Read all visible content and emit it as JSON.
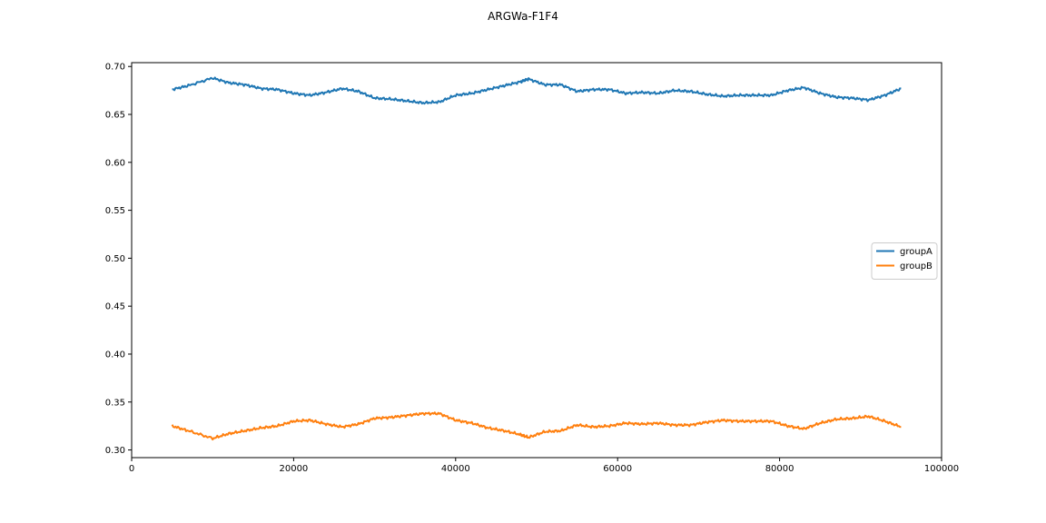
{
  "chart_data": {
    "type": "line",
    "title": "ARGWa-F1F4",
    "xlabel": "",
    "ylabel": "",
    "xlim": [
      0,
      100000
    ],
    "ylim": [
      0.292,
      0.704
    ],
    "xticks": [
      0,
      20000,
      40000,
      60000,
      80000,
      100000
    ],
    "xtick_labels": [
      "0",
      "20000",
      "40000",
      "60000",
      "80000",
      "100000"
    ],
    "yticks": [
      0.3,
      0.35,
      0.4,
      0.45,
      0.5,
      0.55,
      0.6,
      0.65,
      0.7
    ],
    "ytick_labels": [
      "0.30",
      "0.35",
      "0.40",
      "0.45",
      "0.50",
      "0.55",
      "0.60",
      "0.65",
      "0.70"
    ],
    "grid": false,
    "legend_position": "center-right",
    "x": [
      5000,
      7000,
      10000,
      12000,
      14000,
      16000,
      18000,
      20000,
      22000,
      24000,
      26000,
      28000,
      30000,
      32000,
      34000,
      36000,
      38000,
      40000,
      42000,
      44000,
      46000,
      48000,
      49000,
      51000,
      53000,
      55000,
      57000,
      59000,
      61000,
      63000,
      65000,
      67000,
      69000,
      71000,
      73000,
      75000,
      77000,
      79000,
      81000,
      83000,
      85000,
      87000,
      89000,
      91000,
      93000,
      95000
    ],
    "series": [
      {
        "name": "groupA",
        "color": "#1f77b4",
        "values": [
          0.676,
          0.68,
          0.688,
          0.683,
          0.681,
          0.677,
          0.676,
          0.672,
          0.67,
          0.673,
          0.677,
          0.674,
          0.667,
          0.666,
          0.664,
          0.662,
          0.663,
          0.67,
          0.672,
          0.676,
          0.68,
          0.684,
          0.687,
          0.681,
          0.681,
          0.674,
          0.676,
          0.676,
          0.672,
          0.673,
          0.672,
          0.675,
          0.674,
          0.671,
          0.669,
          0.67,
          0.67,
          0.67,
          0.675,
          0.678,
          0.672,
          0.668,
          0.667,
          0.665,
          0.67,
          0.677
        ]
      },
      {
        "name": "groupB",
        "color": "#ff7f0e",
        "values": [
          0.325,
          0.32,
          0.312,
          0.317,
          0.32,
          0.323,
          0.325,
          0.33,
          0.331,
          0.327,
          0.324,
          0.327,
          0.333,
          0.334,
          0.336,
          0.338,
          0.338,
          0.331,
          0.328,
          0.323,
          0.32,
          0.316,
          0.313,
          0.319,
          0.32,
          0.326,
          0.324,
          0.325,
          0.328,
          0.327,
          0.328,
          0.326,
          0.326,
          0.329,
          0.331,
          0.33,
          0.33,
          0.33,
          0.325,
          0.322,
          0.328,
          0.332,
          0.333,
          0.335,
          0.33,
          0.324
        ]
      }
    ]
  }
}
